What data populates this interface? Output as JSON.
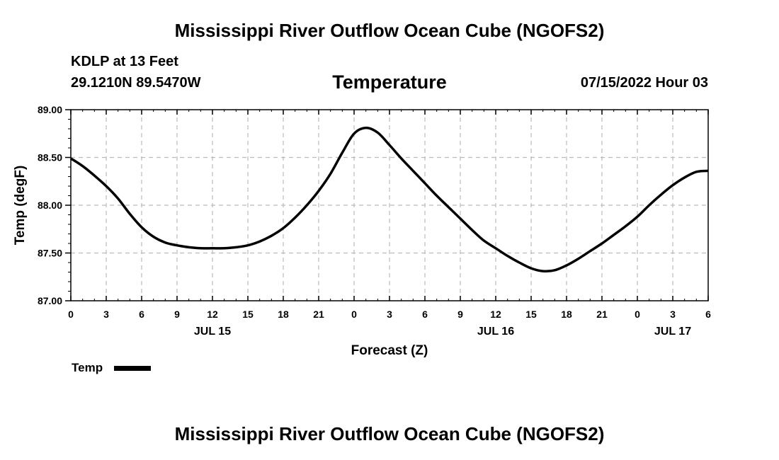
{
  "page": {
    "title_top": "Mississippi River Outflow Ocean Cube (NGOFS2)",
    "title_bottom": "Mississippi River Outflow Ocean Cube (NGOFS2)",
    "station": "KDLP at 13 Feet",
    "coords": "29.1210N  89.5470W",
    "variable": "Temperature",
    "datetime": "07/15/2022 Hour 03"
  },
  "colors": {
    "line": "#000000",
    "grid": "#bbbbbb"
  },
  "chart_data": {
    "type": "line",
    "title": "Temperature",
    "xlabel": "Forecast (Z)",
    "ylabel": "Temp (degF)",
    "xlim": [
      0,
      54
    ],
    "ylim": [
      87.0,
      89.0
    ],
    "yticks": [
      "87.00",
      "87.50",
      "88.00",
      "88.50",
      "89.00"
    ],
    "xtick_hours": [
      0,
      3,
      6,
      9,
      12,
      15,
      18,
      21,
      24,
      27,
      30,
      33,
      36,
      39,
      42,
      45,
      48,
      51,
      54
    ],
    "xtick_labels": [
      "0",
      "3",
      "6",
      "9",
      "12",
      "15",
      "18",
      "21",
      "0",
      "3",
      "6",
      "9",
      "12",
      "15",
      "18",
      "21",
      "0",
      "3",
      "6"
    ],
    "day_labels": [
      {
        "hour": 12,
        "label": "JUL 15"
      },
      {
        "hour": 36,
        "label": "JUL 16"
      },
      {
        "hour": 51,
        "label": "JUL 17"
      }
    ],
    "grid": true,
    "legend": "bottom-left",
    "series": [
      {
        "name": "Temp",
        "x": [
          0,
          1,
          2,
          3,
          4,
          5,
          6,
          7,
          8,
          9,
          10,
          11,
          12,
          13,
          14,
          15,
          16,
          17,
          18,
          19,
          20,
          21,
          22,
          23,
          24,
          25,
          26,
          27,
          28,
          29,
          30,
          31,
          32,
          33,
          34,
          35,
          36,
          37,
          38,
          39,
          40,
          41,
          42,
          43,
          44,
          45,
          46,
          47,
          48,
          49,
          50,
          51,
          52,
          53,
          54
        ],
        "values": [
          88.49,
          88.41,
          88.31,
          88.2,
          88.07,
          87.91,
          87.77,
          87.67,
          87.61,
          87.58,
          87.56,
          87.55,
          87.55,
          87.55,
          87.56,
          87.58,
          87.62,
          87.68,
          87.76,
          87.87,
          88.0,
          88.15,
          88.33,
          88.55,
          88.75,
          88.81,
          88.76,
          88.63,
          88.49,
          88.36,
          88.23,
          88.1,
          87.98,
          87.86,
          87.74,
          87.63,
          87.55,
          87.47,
          87.4,
          87.34,
          87.31,
          87.32,
          87.37,
          87.44,
          87.52,
          87.6,
          87.69,
          87.78,
          87.88,
          88.0,
          88.11,
          88.21,
          88.29,
          88.35,
          88.36
        ]
      }
    ]
  }
}
